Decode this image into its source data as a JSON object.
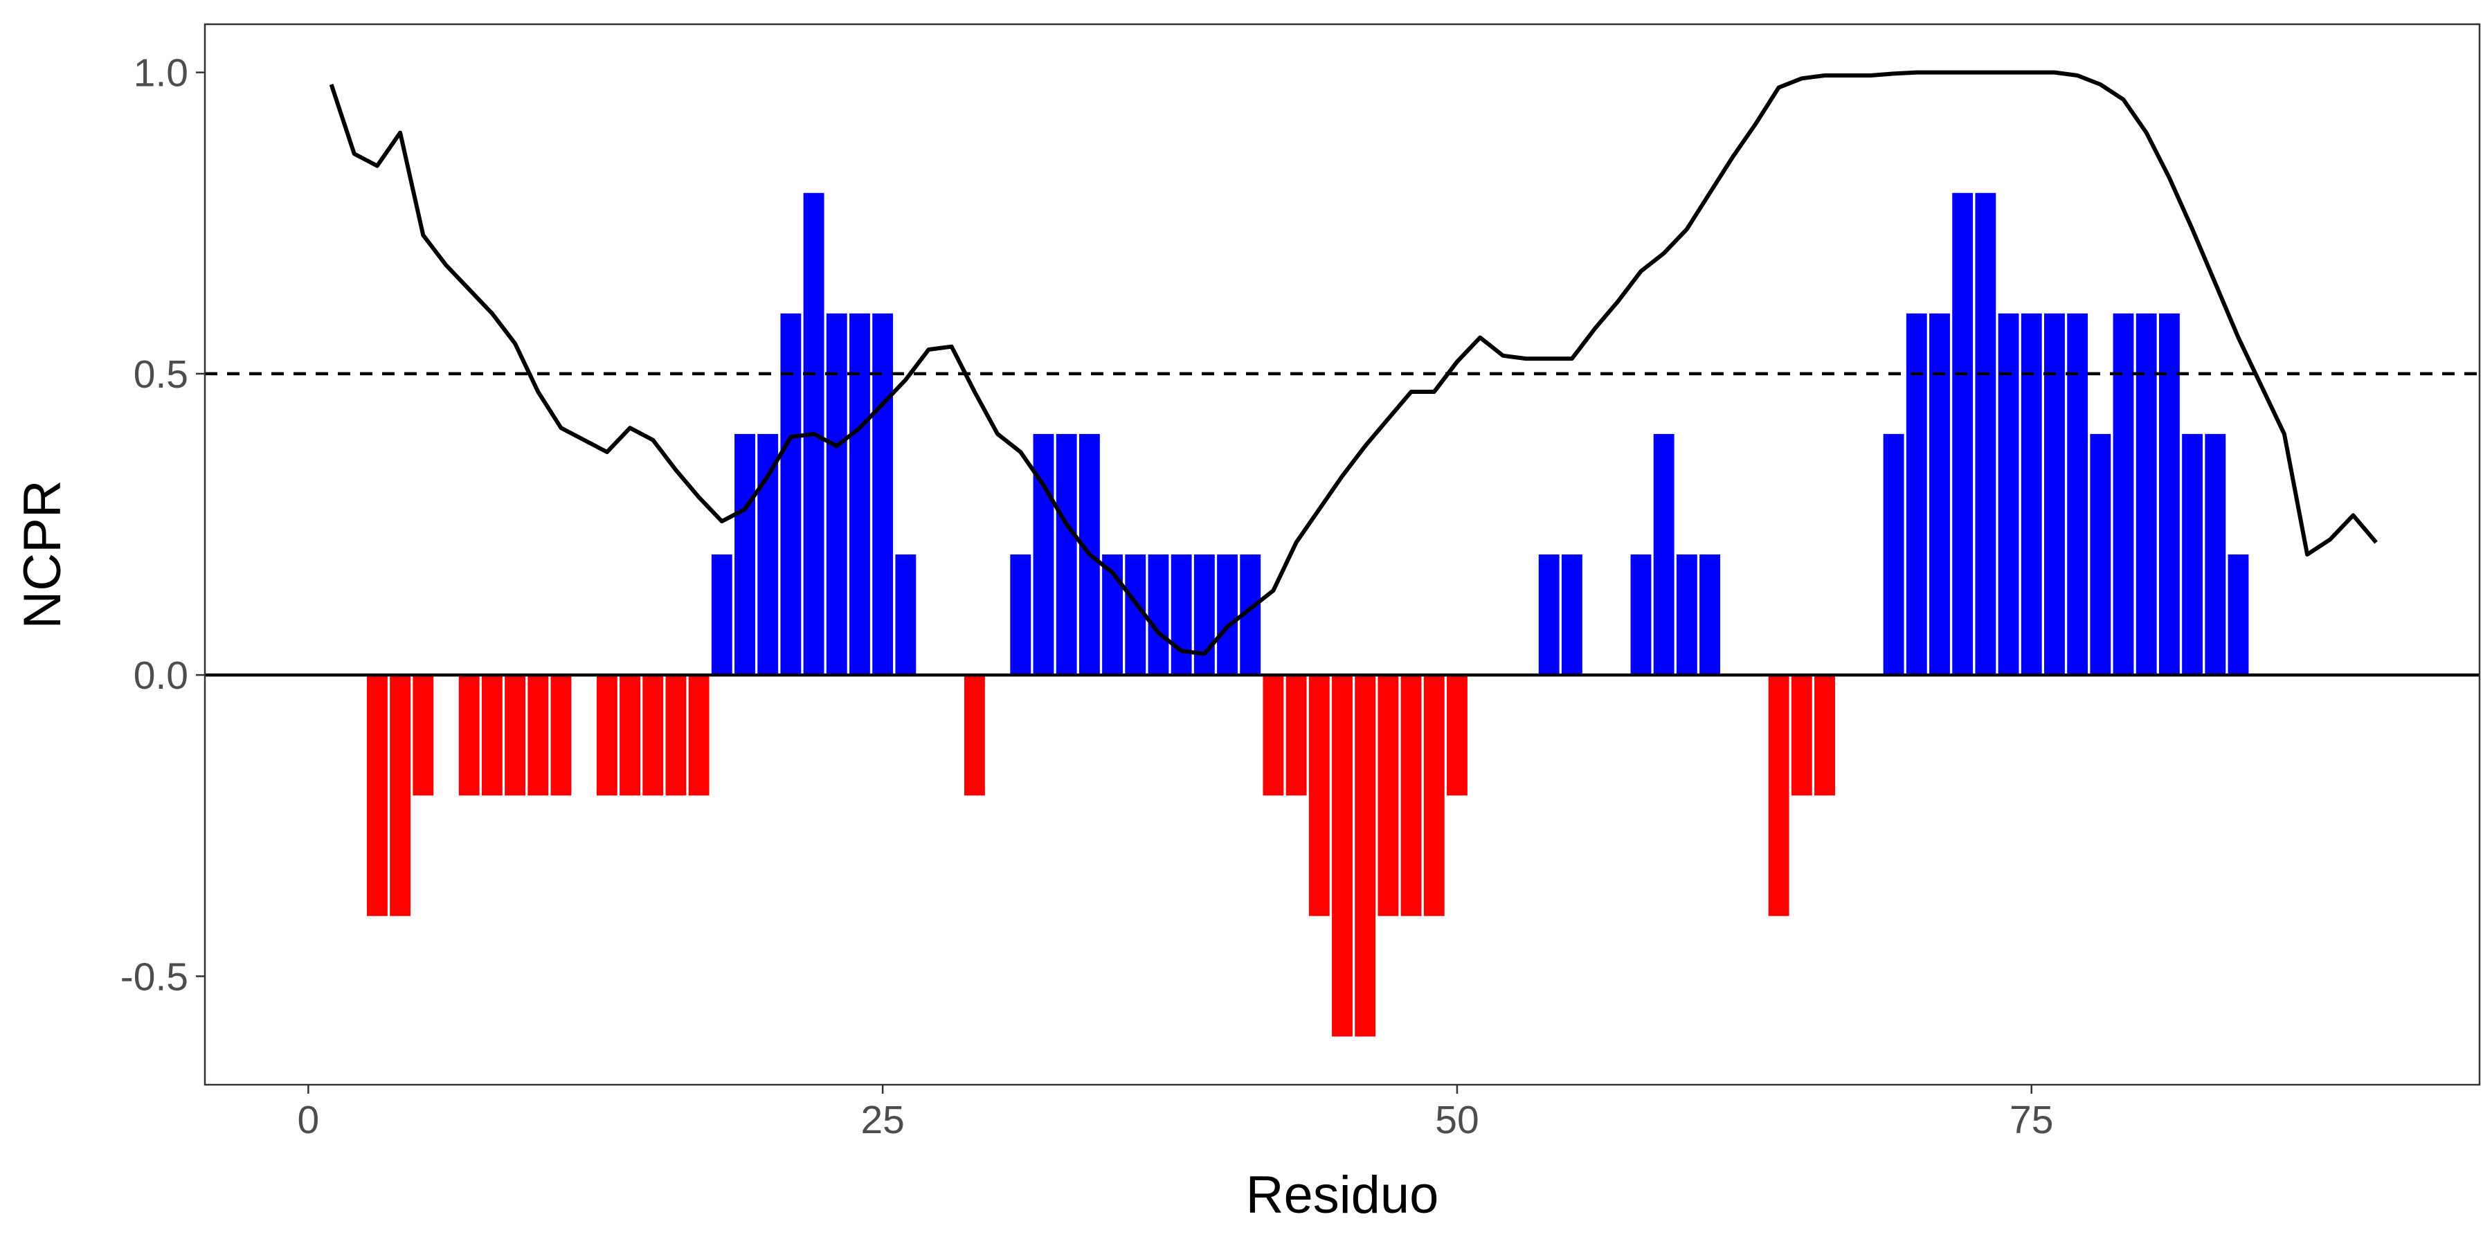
{
  "chart_data": {
    "type": "bar",
    "xlabel": "Residuo",
    "ylabel": "NCPR",
    "xlim": [
      -4.5,
      94.5
    ],
    "ylim": [
      -0.68,
      1.08
    ],
    "x_ticks": [
      0,
      25,
      50,
      75
    ],
    "y_ticks": [
      -0.5,
      0.0,
      0.5,
      1.0
    ],
    "x_tick_labels": [
      "0",
      "25",
      "50",
      "75"
    ],
    "y_tick_labels": [
      "-0.5",
      "0.0",
      "0.5",
      "1.0"
    ],
    "grid": false,
    "reference_lines": [
      {
        "y": 0.0,
        "style": "solid"
      },
      {
        "y": 0.5,
        "style": "dashed"
      }
    ],
    "colors": {
      "positive": "#0000ff",
      "negative": "#ff0000",
      "line": "#000000"
    },
    "bars": {
      "x": [
        3,
        4,
        5,
        7,
        8,
        9,
        10,
        11,
        13,
        14,
        15,
        16,
        17,
        18,
        19,
        20,
        21,
        22,
        23,
        24,
        25,
        26,
        29,
        31,
        32,
        33,
        34,
        35,
        36,
        37,
        38,
        39,
        40,
        41,
        42,
        43,
        44,
        45,
        46,
        47,
        48,
        49,
        50,
        54,
        55,
        58,
        59,
        60,
        61,
        64,
        65,
        66,
        69,
        70,
        71,
        72,
        73,
        74,
        75,
        76,
        77,
        78,
        79,
        80,
        81,
        82,
        83,
        84
      ],
      "values": [
        -0.4,
        -0.4,
        -0.2,
        -0.2,
        -0.2,
        -0.2,
        -0.2,
        -0.2,
        -0.2,
        -0.2,
        -0.2,
        -0.2,
        -0.2,
        0.2,
        0.4,
        0.4,
        0.6,
        0.8,
        0.6,
        0.6,
        0.6,
        0.2,
        -0.2,
        0.2,
        0.4,
        0.4,
        0.4,
        0.2,
        0.2,
        0.2,
        0.2,
        0.2,
        0.2,
        0.2,
        -0.2,
        -0.2,
        -0.4,
        -0.6,
        -0.6,
        -0.4,
        -0.4,
        -0.4,
        -0.2,
        0.2,
        0.2,
        0.2,
        0.4,
        0.2,
        0.2,
        -0.4,
        -0.2,
        -0.2,
        0.4,
        0.6,
        0.6,
        0.8,
        0.8,
        0.6,
        0.6,
        0.6,
        0.6,
        0.4,
        0.6,
        0.6,
        0.6,
        0.4,
        0.4,
        0.2
      ]
    },
    "line": {
      "x": [
        1,
        2,
        3,
        4,
        5,
        6,
        7,
        8,
        9,
        10,
        11,
        12,
        13,
        14,
        15,
        16,
        17,
        18,
        19,
        20,
        21,
        22,
        23,
        24,
        25,
        26,
        27,
        28,
        29,
        30,
        31,
        32,
        33,
        34,
        35,
        36,
        37,
        38,
        39,
        40,
        41,
        42,
        43,
        44,
        45,
        46,
        47,
        48,
        49,
        50,
        51,
        52,
        53,
        54,
        55,
        56,
        57,
        58,
        59,
        60,
        61,
        62,
        63,
        64,
        65,
        66,
        67,
        68,
        69,
        70,
        71,
        72,
        73,
        74,
        75,
        76,
        77,
        78,
        79,
        80,
        81,
        82,
        83,
        84,
        85,
        86,
        87,
        88,
        89,
        90
      ],
      "values": [
        0.98,
        0.865,
        0.845,
        0.9,
        0.73,
        0.68,
        0.64,
        0.6,
        0.55,
        0.47,
        0.41,
        0.39,
        0.37,
        0.41,
        0.39,
        0.34,
        0.295,
        0.255,
        0.275,
        0.33,
        0.395,
        0.4,
        0.38,
        0.41,
        0.45,
        0.49,
        0.54,
        0.545,
        0.47,
        0.4,
        0.37,
        0.315,
        0.25,
        0.2,
        0.17,
        0.12,
        0.07,
        0.04,
        0.035,
        0.08,
        0.11,
        0.14,
        0.22,
        0.275,
        0.33,
        0.38,
        0.425,
        0.47,
        0.47,
        0.52,
        0.56,
        0.53,
        0.525,
        0.525,
        0.525,
        0.575,
        0.62,
        0.67,
        0.7,
        0.74,
        0.8,
        0.86,
        0.915,
        0.975,
        0.99,
        0.995,
        0.995,
        0.995,
        0.998,
        1.0,
        1.0,
        1.0,
        1.0,
        1.0,
        1.0,
        1.0,
        0.995,
        0.98,
        0.955,
        0.9,
        0.825,
        0.74,
        0.65,
        0.56,
        0.48,
        0.4,
        0.2,
        0.225,
        0.265,
        0.22
      ]
    }
  }
}
